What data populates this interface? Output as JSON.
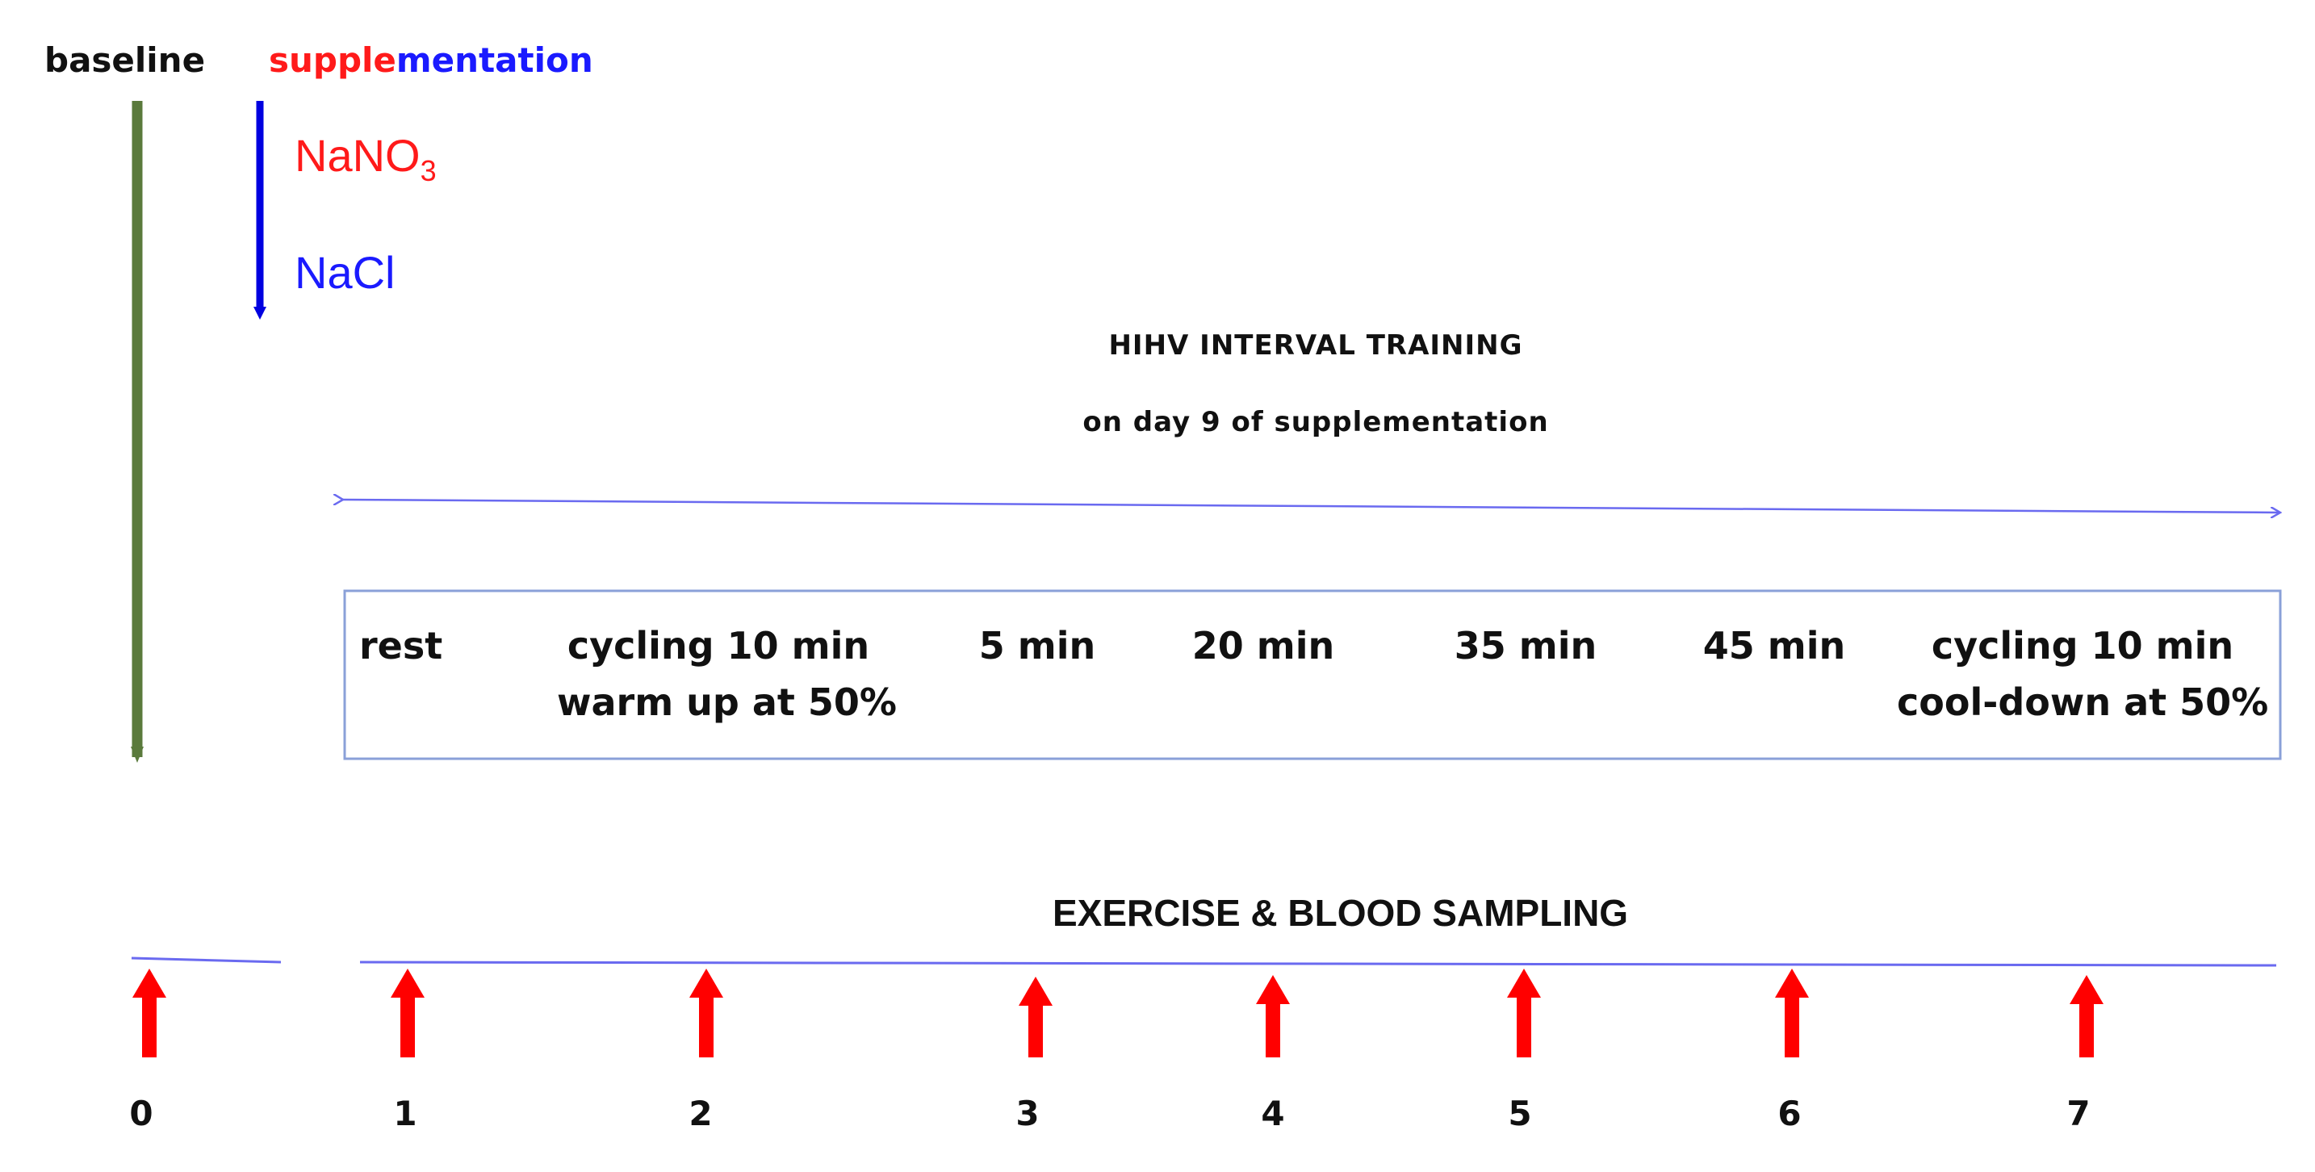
{
  "header": {
    "baseline": "baseline",
    "supplementation_part1": "supple",
    "supplementation_part2": "mentation"
  },
  "supplements": {
    "nitrate_base": "NaNO",
    "nitrate_subscript": "3",
    "placebo": "NaCl"
  },
  "training": {
    "title": "HIHV INTERVAL TRAINING",
    "subtitle": "on day 9 of supplementation"
  },
  "phases": [
    {
      "line1": "rest",
      "line2": ""
    },
    {
      "line1": "cycling 10 min",
      "line2": "warm up at 50%"
    },
    {
      "line1": "5 min",
      "line2": ""
    },
    {
      "line1": "20 min",
      "line2": ""
    },
    {
      "line1": "35 min",
      "line2": ""
    },
    {
      "line1": "45 min",
      "line2": ""
    },
    {
      "line1": "cycling 10 min",
      "line2": "cool-down at 50%"
    }
  ],
  "sampling": {
    "title": "EXERCISE & BLOOD SAMPLING",
    "timepoints": [
      "0",
      "1",
      "2",
      "3",
      "4",
      "5",
      "6",
      "7"
    ]
  },
  "colors": {
    "baseline_line": "#5a7a3c",
    "supplement_line": "#0000e0",
    "nitrate_text": "#ff1a1a",
    "placebo_text": "#1a1aff",
    "blue_rule": "#6a6af0",
    "box_border": "#8aa0d8",
    "arrow": "#ff0000"
  }
}
